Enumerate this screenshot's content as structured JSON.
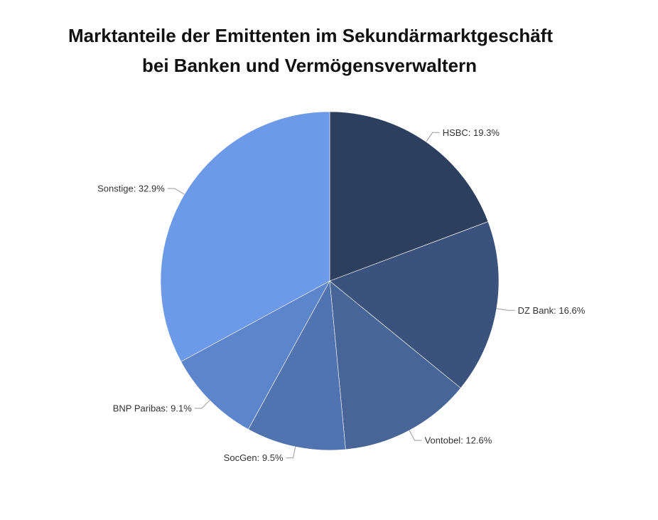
{
  "chart_data": {
    "type": "pie",
    "title_lines": [
      "Marktanteile der Emittenten im Sekundärmarktgeschäft",
      "bei Banken und Vermögensverwaltern"
    ],
    "slices": [
      {
        "name": "HSBC",
        "value": 19.3,
        "label": "HSBC: 19.3%",
        "color": "#2d3f5f"
      },
      {
        "name": "DZ Bank",
        "value": 16.6,
        "label": "DZ Bank: 16.6%",
        "color": "#3b527c"
      },
      {
        "name": "Vontobel",
        "value": 12.6,
        "label": "Vontobel: 12.6%",
        "color": "#476597"
      },
      {
        "name": "SocGen",
        "value": 9.5,
        "label": "SocGen: 9.5%",
        "color": "#5174b0"
      },
      {
        "name": "BNP Paribas",
        "value": 9.1,
        "label": "BNP Paribas: 9.1%",
        "color": "#5d85cc"
      },
      {
        "name": "Sonstige",
        "value": 32.9,
        "label": "Sonstige: 32.9%",
        "color": "#6d9ae8"
      }
    ],
    "start_angle": "12 o'clock",
    "direction": "clockwise",
    "legend": "none",
    "data_labels": "outside with leader lines"
  }
}
